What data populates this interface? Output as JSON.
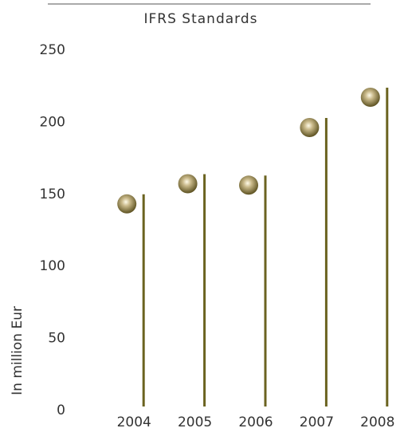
{
  "chart_data": {
    "type": "lollipop",
    "title": "IFRS Standards",
    "y_label": "In million Eur",
    "categories": [
      "2004",
      "2005",
      "2006",
      "2007",
      "2008"
    ],
    "values": [
      150,
      164,
      163,
      203,
      224
    ],
    "color": "#6b6320",
    "ylim": [
      0,
      250
    ],
    "yticks": [
      0,
      50,
      100,
      150,
      200,
      250
    ]
  }
}
